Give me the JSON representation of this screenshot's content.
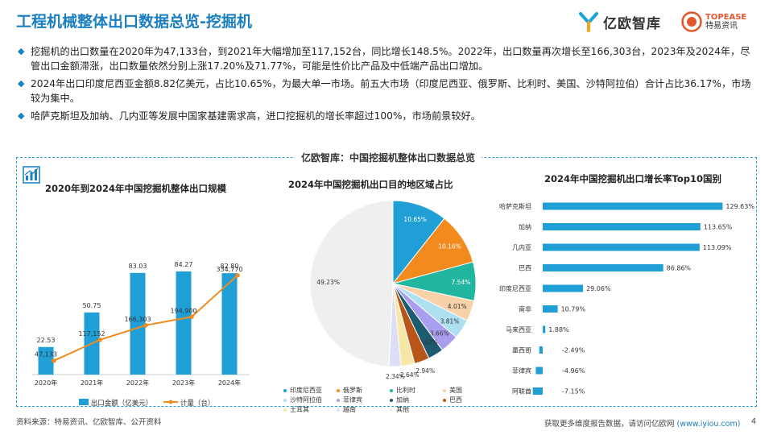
{
  "header": {
    "title": "工程机械整体出口数据总览-挖掘机",
    "logo_yiou": "亿欧智库",
    "logo_topease_en": "TOPEASE",
    "logo_topease_cn": "特易资讯"
  },
  "bullets": [
    "挖掘机的出口数量在2020年为47,133台，到2021年大幅增加至117,152台，同比增长148.5%。2022年，出口数量再次增长至166,303台，2023年及2024年，尽管出口金额滞涨，出口数量依然分别上涨17.20%及71.77%，可能是性价比产品及中低端产品出口增加。",
    "2024年出口印度尼西亚金额8.82亿美元，占比10.65%，为最大单一市场。前五大市场（印度尼西亚、俄罗斯、比利时、美国、沙特阿拉伯）合计占比36.17%，市场较为集中。",
    "哈萨克斯坦及加纳、几内亚等发展中国家基建需求高，进口挖掘机的增长率超过100%，市场前景较好。"
  ],
  "panel": {
    "title": "亿欧智库：中国挖掘机整体出口数据总览"
  },
  "colors": {
    "accent": "#1a7fc1",
    "bar": "#1f9fd5",
    "line": "#f28a1e"
  },
  "chart_data": [
    {
      "type": "bar",
      "title": "2020年到2024年中国挖掘机整体出口规模",
      "categories": [
        "2020年",
        "2021年",
        "2022年",
        "2023年",
        "2024年"
      ],
      "series": [
        {
          "name": "出口金额（亿美元）",
          "type": "bar",
          "values": [
            22.53,
            50.75,
            83.03,
            84.27,
            82.8
          ],
          "labels": [
            "22.53",
            "50.75",
            "83.03",
            "84.27",
            "82.80"
          ]
        },
        {
          "name": "计量（台）",
          "type": "line",
          "values": [
            47133,
            117152,
            166303,
            194900,
            334770
          ],
          "labels": [
            "47,133",
            "117,152",
            "166,303",
            "194,900",
            "334,770"
          ]
        }
      ],
      "ylim_bar": [
        0,
        100
      ],
      "ylim_line": [
        0,
        400000
      ]
    },
    {
      "type": "pie",
      "title": "2024年中国挖掘机出口目的地区域占比",
      "labels": [
        "印度尼西亚",
        "俄罗斯",
        "比利时",
        "美国",
        "沙特阿拉伯",
        "菲律宾",
        "加纳",
        "巴西",
        "土耳其",
        "越南",
        "其他"
      ],
      "values": [
        10.65,
        10.16,
        7.54,
        4.01,
        3.81,
        3.66,
        3.02,
        2.94,
        2.64,
        2.34,
        49.23
      ],
      "value_labels": [
        "10.65%",
        "10.16%",
        "7.54%",
        "4.01%",
        "3.81%",
        "3.66%",
        "3.02%",
        "2.94%",
        "2.64%",
        "2.34%",
        "49.23%"
      ],
      "colors": [
        "#1f9fd5",
        "#f28a1e",
        "#22b5a0",
        "#f8d1a8",
        "#aee0f2",
        "#a99ef0",
        "#1d5b70",
        "#b8561a",
        "#f6e7a8",
        "#ddddf5",
        "#efefef"
      ],
      "legend": [
        "印度尼西亚",
        "俄罗斯",
        "比利时",
        "美国",
        "沙特阿拉伯",
        "菲律宾",
        "加纳",
        "巴西",
        "土耳其",
        "越南",
        "其他"
      ]
    },
    {
      "type": "bar",
      "orientation": "horizontal",
      "title": "2024年中国挖掘机出口增长率Top10国别",
      "categories": [
        "哈萨克斯坦",
        "加纳",
        "几内亚",
        "巴西",
        "印度尼西亚",
        "南非",
        "马来西亚",
        "墨西哥",
        "菲律宾",
        "阿联酋"
      ],
      "values": [
        129.63,
        113.65,
        113.09,
        86.86,
        29.06,
        10.79,
        1.88,
        -2.49,
        -4.96,
        -7.15
      ],
      "value_labels": [
        "129.63%",
        "113.65%",
        "113.09%",
        "86.86%",
        "29.06%",
        "10.79%",
        "1.88%",
        "-2.49%",
        "-4.96%",
        "-7.15%"
      ]
    }
  ],
  "footer": {
    "source": "资料来源：特易资讯、亿欧智库、公开资料",
    "more": "获取更多维度报告数据，请访问亿欧网",
    "url": "(www.iyiou.com)",
    "page": "4"
  }
}
